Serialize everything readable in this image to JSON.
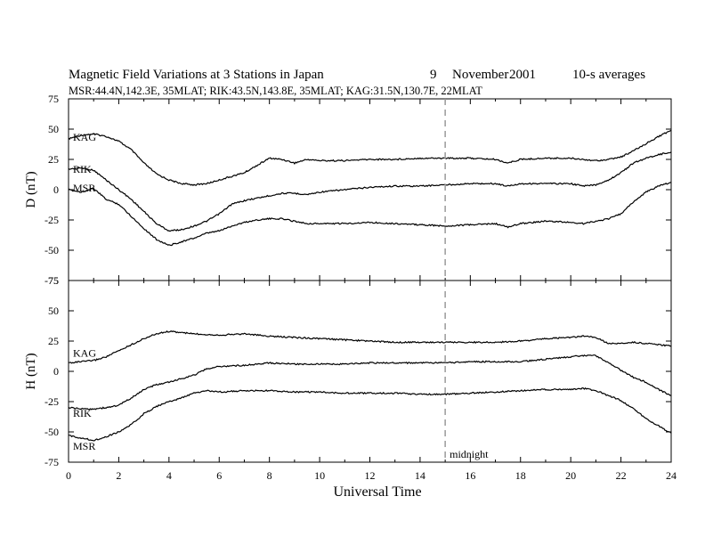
{
  "title": {
    "main": "Magnetic Field Variations at 3 Stations in Japan",
    "day": "9",
    "month": "November",
    "year": "2001",
    "averaging": "10-s averages",
    "stations_line": "MSR:44.4N,142.3E, 35MLAT;   RIK:43.5N,143.8E, 35MLAT;   KAG:31.5N,130.7E, 22MLAT"
  },
  "colors": {
    "trace": "#000000",
    "midnight_line": "#9a9a9a",
    "background": "#ffffff"
  },
  "chart_data": [
    {
      "type": "line",
      "panel": "D",
      "ylabel": "D (nT)",
      "xlabel": "",
      "xlim": [
        0,
        24
      ],
      "ylim": [
        -75,
        75
      ],
      "yticks": [
        -75,
        -50,
        -25,
        0,
        25,
        50,
        75
      ],
      "xticks": [
        0,
        2,
        4,
        6,
        8,
        10,
        12,
        14,
        16,
        18,
        20,
        22,
        24
      ],
      "series": [
        {
          "name": "KAG",
          "x": [
            0,
            0.5,
            1,
            1.5,
            2,
            2.5,
            3,
            3.5,
            4,
            4.5,
            5,
            5.5,
            6,
            6.5,
            7,
            7.5,
            8,
            8.5,
            9,
            9.5,
            10,
            11,
            12,
            13,
            14,
            15,
            16,
            17,
            17.5,
            18,
            19,
            20,
            20.5,
            21,
            21.5,
            22,
            22.5,
            23,
            23.5,
            24
          ],
          "y": [
            42,
            45,
            46,
            44,
            40,
            33,
            22,
            13,
            8,
            5,
            4,
            5,
            8,
            11,
            14,
            20,
            26,
            25,
            22,
            25,
            24,
            24,
            25,
            25,
            26,
            26,
            26,
            25,
            22,
            25,
            26,
            26,
            25,
            24,
            25,
            27,
            32,
            38,
            44,
            49
          ]
        },
        {
          "name": "RIK",
          "x": [
            0,
            0.5,
            1,
            1.5,
            2,
            2.5,
            3,
            3.5,
            4,
            4.5,
            5,
            5.5,
            6,
            6.5,
            7,
            7.5,
            8,
            8.5,
            9,
            9.5,
            10,
            11,
            12,
            13,
            14,
            15,
            16,
            17,
            17.5,
            18,
            19,
            20,
            20.5,
            21,
            21.5,
            22,
            22.5,
            23,
            23.5,
            24
          ],
          "y": [
            17,
            18,
            16,
            8,
            0,
            -8,
            -18,
            -28,
            -34,
            -33,
            -30,
            -26,
            -20,
            -12,
            -9,
            -7,
            -5,
            -3,
            -3,
            -4,
            -2,
            0,
            2,
            3,
            3,
            4,
            5,
            5,
            3,
            5,
            5,
            5,
            3,
            4,
            8,
            14,
            22,
            26,
            29,
            31
          ]
        },
        {
          "name": "MSR",
          "x": [
            0,
            0.5,
            1,
            1.5,
            2,
            2.5,
            3,
            3.5,
            4,
            4.5,
            5,
            5.5,
            6,
            6.5,
            7,
            7.5,
            8,
            8.5,
            9,
            9.5,
            10,
            11,
            12,
            13,
            14,
            15,
            16,
            17,
            17.5,
            18,
            19,
            20,
            20.5,
            21,
            21.5,
            22,
            22.5,
            23,
            23.5,
            24
          ],
          "y": [
            0,
            -2,
            1,
            -8,
            -12,
            -22,
            -32,
            -41,
            -46,
            -43,
            -40,
            -36,
            -34,
            -30,
            -27,
            -25,
            -24,
            -24,
            -26,
            -28,
            -28,
            -28,
            -27,
            -28,
            -29,
            -30,
            -29,
            -28,
            -31,
            -28,
            -26,
            -27,
            -28,
            -26,
            -24,
            -20,
            -10,
            -2,
            3,
            6
          ]
        }
      ],
      "labels": [
        "KAG",
        "RIK",
        "MSR"
      ]
    },
    {
      "type": "line",
      "panel": "H",
      "ylabel": "H (nT)",
      "xlabel": "Universal Time",
      "xlim": [
        0,
        24
      ],
      "ylim": [
        -75,
        75
      ],
      "yticks": [
        -75,
        -50,
        -25,
        0,
        25,
        50,
        75
      ],
      "xticks": [
        0,
        2,
        4,
        6,
        8,
        10,
        12,
        14,
        16,
        18,
        20,
        22,
        24
      ],
      "series": [
        {
          "name": "KAG",
          "x": [
            0,
            0.5,
            1,
            1.5,
            2,
            2.5,
            3,
            3.5,
            4,
            4.5,
            5,
            6,
            7,
            8,
            9,
            10,
            11,
            12,
            13,
            14,
            15,
            16,
            17,
            18,
            19,
            20,
            20.5,
            21,
            21.5,
            22,
            22.5,
            23,
            23.5,
            24
          ],
          "y": [
            7,
            8,
            9,
            12,
            17,
            22,
            27,
            31,
            33,
            32,
            31,
            30,
            31,
            29,
            28,
            27,
            26,
            25,
            24,
            24,
            24,
            24,
            24,
            25,
            27,
            28,
            29,
            28,
            23,
            23,
            24,
            23,
            22,
            21
          ]
        },
        {
          "name": "RIK",
          "x": [
            0,
            0.5,
            1,
            1.5,
            2,
            2.5,
            3,
            3.5,
            4,
            4.5,
            5,
            5.5,
            6,
            7,
            8,
            9,
            10,
            11,
            12,
            13,
            14,
            15,
            16,
            17,
            18,
            19,
            20,
            20.5,
            21,
            21.5,
            22,
            22.5,
            23,
            23.5,
            24
          ],
          "y": [
            -30,
            -31,
            -31,
            -30,
            -28,
            -22,
            -15,
            -11,
            -9,
            -6,
            -3,
            2,
            4,
            5,
            7,
            6,
            6,
            6,
            7,
            7,
            7,
            7,
            8,
            8,
            8,
            10,
            12,
            13,
            13,
            7,
            1,
            -5,
            -9,
            -15,
            -20
          ]
        },
        {
          "name": "MSR",
          "x": [
            0,
            0.5,
            1,
            1.5,
            2,
            2.5,
            3,
            3.5,
            4,
            4.5,
            5,
            5.5,
            6,
            7,
            8,
            9,
            10,
            11,
            12,
            13,
            14,
            15,
            16,
            17,
            18,
            19,
            20,
            20.5,
            21,
            21.5,
            22,
            22.5,
            23,
            23.5,
            24
          ],
          "y": [
            -53,
            -55,
            -57,
            -54,
            -50,
            -44,
            -35,
            -29,
            -25,
            -22,
            -18,
            -16,
            -17,
            -16,
            -16,
            -17,
            -17,
            -18,
            -18,
            -18,
            -19,
            -19,
            -18,
            -17,
            -16,
            -15,
            -15,
            -14,
            -16,
            -20,
            -24,
            -31,
            -39,
            -45,
            -51
          ]
        }
      ],
      "labels": [
        "KAG",
        "RIK",
        "MSR"
      ]
    }
  ],
  "midnight": {
    "ut_hour": 15,
    "label": "midnight"
  }
}
